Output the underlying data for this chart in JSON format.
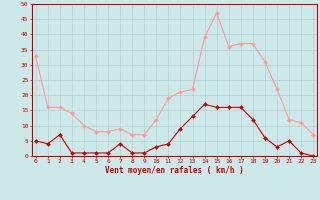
{
  "hours": [
    0,
    1,
    2,
    3,
    4,
    5,
    6,
    7,
    8,
    9,
    10,
    11,
    12,
    13,
    14,
    15,
    16,
    17,
    18,
    19,
    20,
    21,
    22,
    23
  ],
  "wind_avg": [
    5,
    4,
    7,
    1,
    1,
    1,
    1,
    4,
    1,
    1,
    3,
    4,
    9,
    13,
    17,
    16,
    16,
    16,
    12,
    6,
    3,
    5,
    1,
    0
  ],
  "wind_gust": [
    33,
    16,
    16,
    14,
    10,
    8,
    8,
    9,
    7,
    7,
    12,
    19,
    21,
    22,
    39,
    47,
    36,
    37,
    37,
    31,
    22,
    12,
    11,
    7
  ],
  "xlabel": "Vent moyen/en rafales ( km/h )",
  "bg_color": "#cce8e8",
  "grid_color": "#aacccc",
  "line_avg_color": "#cc0000",
  "line_gust_color": "#ff9999",
  "marker_size": 2,
  "linewidth": 0.8,
  "ylim": [
    0,
    50
  ],
  "yticks": [
    0,
    5,
    10,
    15,
    20,
    25,
    30,
    35,
    40,
    45,
    50
  ],
  "ytick_labels": [
    "0",
    "5",
    "10",
    "15",
    "20",
    "25",
    "30",
    "35",
    "40",
    "45",
    "50"
  ],
  "xticks": [
    0,
    1,
    2,
    3,
    4,
    5,
    6,
    7,
    8,
    9,
    10,
    11,
    12,
    13,
    14,
    15,
    16,
    17,
    18,
    19,
    20,
    21,
    22,
    23
  ],
  "tick_fontsize": 4.5,
  "xlabel_fontsize": 5.5
}
